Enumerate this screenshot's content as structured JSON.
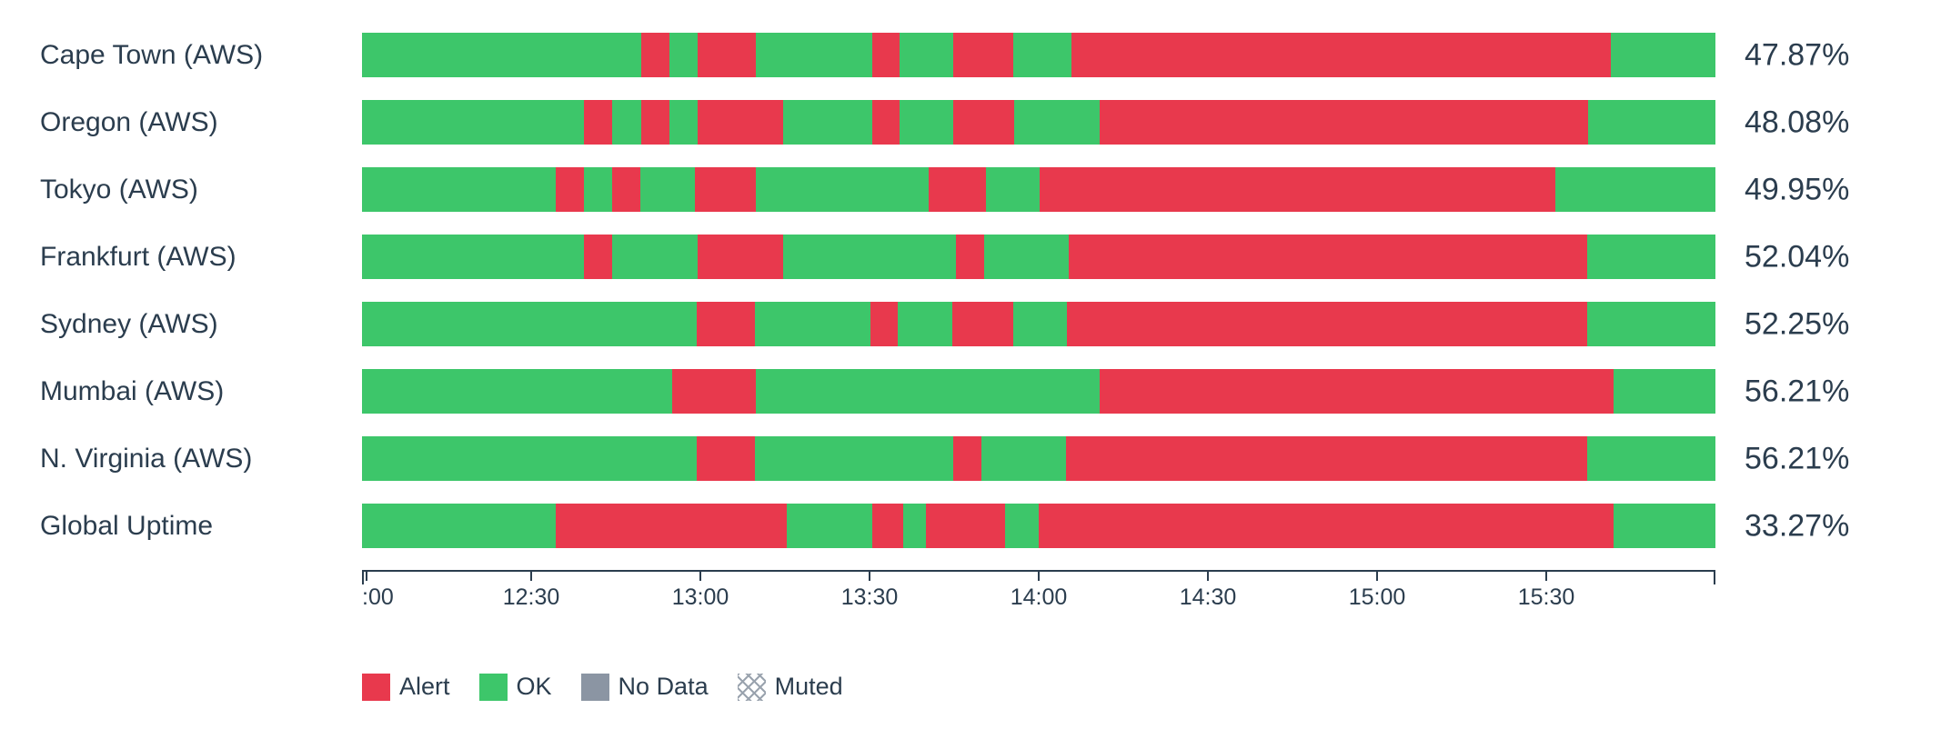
{
  "colors": {
    "alert": "#e8394d",
    "ok": "#3dc66a",
    "no_data": "#8b95a3",
    "muted_pattern": "#9aa3ae",
    "text": "#2b3d4e",
    "axis": "#2b3d4e"
  },
  "chart_data": {
    "type": "status-timeline-bar",
    "description": "Uptime status timeline per region; segments are [status, percent-of-bar-width]; bar spans 12:00 to 16:00 (240 minutes)",
    "x_axis": {
      "range_minutes": 240,
      "ticks": [
        {
          "label": ":00",
          "pos": 0
        },
        {
          "label": "12:30",
          "pos": 12.5
        },
        {
          "label": "13:00",
          "pos": 25
        },
        {
          "label": "13:30",
          "pos": 37.5
        },
        {
          "label": "14:00",
          "pos": 50
        },
        {
          "label": "14:30",
          "pos": 62.5
        },
        {
          "label": "15:00",
          "pos": 75
        },
        {
          "label": "15:30",
          "pos": 87.5
        }
      ]
    },
    "rows": [
      {
        "label": "Cape Town (AWS)",
        "uptime": "47.87%",
        "segments": [
          [
            "ok",
            20.6
          ],
          [
            "alert",
            2.1
          ],
          [
            "ok",
            2.1
          ],
          [
            "alert",
            4.3
          ],
          [
            "ok",
            8.6
          ],
          [
            "alert",
            2.0
          ],
          [
            "ok",
            4.0
          ],
          [
            "alert",
            4.4
          ],
          [
            "ok",
            4.3
          ],
          [
            "alert",
            39.9
          ],
          [
            "ok",
            7.7
          ]
        ]
      },
      {
        "label": "Oregon (AWS)",
        "uptime": "48.08%",
        "segments": [
          [
            "ok",
            16.4
          ],
          [
            "alert",
            2.1
          ],
          [
            "ok",
            2.1
          ],
          [
            "alert",
            2.1
          ],
          [
            "ok",
            2.1
          ],
          [
            "alert",
            6.3
          ],
          [
            "ok",
            6.6
          ],
          [
            "alert",
            2.0
          ],
          [
            "ok",
            4.0
          ],
          [
            "alert",
            4.5
          ],
          [
            "ok",
            6.3
          ],
          [
            "alert",
            36.1
          ],
          [
            "ok",
            9.4
          ]
        ]
      },
      {
        "label": "Tokyo (AWS)",
        "uptime": "49.95%",
        "segments": [
          [
            "ok",
            14.3
          ],
          [
            "alert",
            2.1
          ],
          [
            "ok",
            2.1
          ],
          [
            "alert",
            2.1
          ],
          [
            "ok",
            4.0
          ],
          [
            "alert",
            4.5
          ],
          [
            "ok",
            12.8
          ],
          [
            "alert",
            4.2
          ],
          [
            "ok",
            4.0
          ],
          [
            "alert",
            38.1
          ],
          [
            "ok",
            11.8
          ]
        ]
      },
      {
        "label": "Frankfurt (AWS)",
        "uptime": "52.04%",
        "segments": [
          [
            "ok",
            16.4
          ],
          [
            "alert",
            2.1
          ],
          [
            "ok",
            6.3
          ],
          [
            "alert",
            6.3
          ],
          [
            "ok",
            12.8
          ],
          [
            "alert",
            2.1
          ],
          [
            "ok",
            6.2
          ],
          [
            "alert",
            38.3
          ],
          [
            "ok",
            9.5
          ]
        ]
      },
      {
        "label": "Sydney (AWS)",
        "uptime": "52.25%",
        "segments": [
          [
            "ok",
            24.7
          ],
          [
            "alert",
            4.3
          ],
          [
            "ok",
            8.6
          ],
          [
            "alert",
            2.0
          ],
          [
            "ok",
            4.0
          ],
          [
            "alert",
            4.5
          ],
          [
            "ok",
            4.0
          ],
          [
            "alert",
            38.4
          ],
          [
            "ok",
            9.5
          ]
        ]
      },
      {
        "label": "Mumbai (AWS)",
        "uptime": "56.21%",
        "segments": [
          [
            "ok",
            22.9
          ],
          [
            "alert",
            6.2
          ],
          [
            "ok",
            25.4
          ],
          [
            "alert",
            38.0
          ],
          [
            "ok",
            7.5
          ]
        ]
      },
      {
        "label": "N. Virginia (AWS)",
        "uptime": "56.21%",
        "segments": [
          [
            "ok",
            24.7
          ],
          [
            "alert",
            4.3
          ],
          [
            "ok",
            14.7
          ],
          [
            "alert",
            2.1
          ],
          [
            "ok",
            6.2
          ],
          [
            "alert",
            38.5
          ],
          [
            "ok",
            9.5
          ]
        ]
      },
      {
        "label": "Global Uptime",
        "uptime": "33.27%",
        "segments": [
          [
            "ok",
            14.3
          ],
          [
            "alert",
            17.1
          ],
          [
            "ok",
            6.3
          ],
          [
            "alert",
            2.3
          ],
          [
            "ok",
            1.7
          ],
          [
            "alert",
            5.8
          ],
          [
            "ok",
            2.5
          ],
          [
            "alert",
            42.5
          ],
          [
            "ok",
            7.5
          ]
        ]
      }
    ],
    "legend": [
      {
        "label": "Alert",
        "swatch": "alert"
      },
      {
        "label": "OK",
        "swatch": "ok"
      },
      {
        "label": "No Data",
        "swatch": "no_data"
      },
      {
        "label": "Muted",
        "swatch": "muted"
      }
    ]
  }
}
